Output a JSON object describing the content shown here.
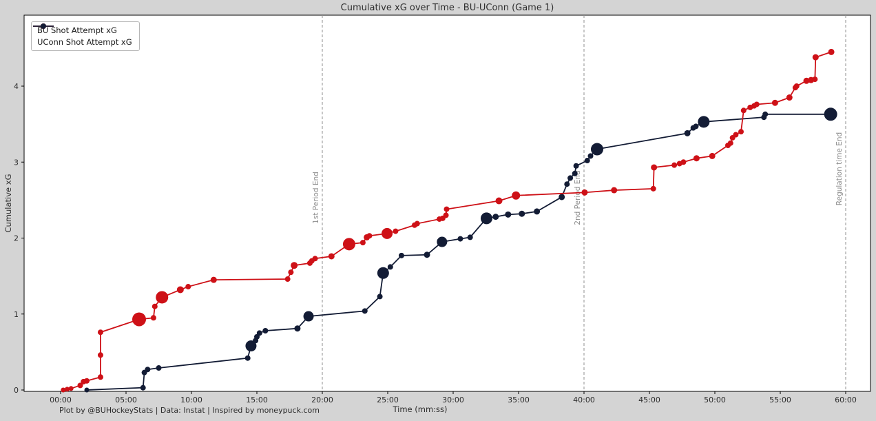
{
  "title": "Cumulative xG over Time - BU-UConn (Game 1)",
  "footer": "Plot by @BUHockeyStats | Data: Instat | Inspired by moneypuck.com",
  "axes": {
    "x_label": "Time (mm:ss)",
    "y_label": "Cumulative xG",
    "x_ticks": [
      "00:00",
      "05:00",
      "10:00",
      "15:00",
      "20:00",
      "25:00",
      "30:00",
      "35:00",
      "40:00",
      "45:00",
      "50:00",
      "55:00",
      "60:00"
    ],
    "y_ticks": [
      0,
      1,
      2,
      3,
      4
    ]
  },
  "legend": [
    {
      "label": "BU Shot Attempt xG",
      "color": "#ce1117"
    },
    {
      "label": "UConn Shot Attempt xG",
      "color": "#131c35"
    }
  ],
  "colors": {
    "background": "#d4d4d4",
    "plot_background": "#ffffff",
    "bu_red": "#ce1117",
    "uconn_navy": "#131c35",
    "period_line": "#8f8f8f",
    "annotation_text": "#8c8c8c"
  },
  "annotations": [
    {
      "time": "20:00",
      "label": "1st Period End"
    },
    {
      "time": "40:00",
      "label": "2nd Period End"
    },
    {
      "time": "60:00",
      "label": "Regulation time End"
    }
  ],
  "chart_data": {
    "type": "line",
    "title": "Cumulative xG over Time - BU-UConn (Game 1)",
    "xlabel": "Time (mm:ss)",
    "ylabel": "Cumulative xG",
    "x_range": [
      "00:00",
      "60:00"
    ],
    "ylim": [
      0,
      4.93
    ],
    "grid": false,
    "legend_position": "upper-left",
    "point_format": [
      "time_mm:ss",
      "cumulative_xg",
      "marker_radius_px"
    ],
    "series": [
      {
        "name": "UConn Shot Attempt xG",
        "color": "#131c35",
        "points": [
          [
            "02:00",
            0.0,
            3.5
          ],
          [
            "06:18",
            0.03,
            4
          ],
          [
            "06:24",
            0.23,
            4
          ],
          [
            "06:39",
            0.27,
            4
          ],
          [
            "07:30",
            0.29,
            4
          ],
          [
            "14:18",
            0.42,
            4
          ],
          [
            "14:33",
            0.58,
            8
          ],
          [
            "14:54",
            0.65,
            4
          ],
          [
            "15:00",
            0.7,
            4
          ],
          [
            "15:12",
            0.75,
            4
          ],
          [
            "15:39",
            0.78,
            4
          ],
          [
            "18:06",
            0.81,
            4.5
          ],
          [
            "18:57",
            0.97,
            7.5
          ],
          [
            "23:15",
            1.04,
            4
          ],
          [
            "24:24",
            1.23,
            4
          ],
          [
            "24:39",
            1.54,
            8.5
          ],
          [
            "25:12",
            1.62,
            4
          ],
          [
            "26:03",
            1.77,
            4
          ],
          [
            "28:00",
            1.78,
            4.5
          ],
          [
            "29:09",
            1.95,
            7.5
          ],
          [
            "30:33",
            1.99,
            4
          ],
          [
            "31:18",
            2.01,
            4
          ],
          [
            "32:33",
            2.26,
            8.5
          ],
          [
            "33:15",
            2.28,
            4.5
          ],
          [
            "34:12",
            2.31,
            4.5
          ],
          [
            "35:15",
            2.32,
            4.5
          ],
          [
            "36:24",
            2.35,
            4.5
          ],
          [
            "38:18",
            2.54,
            4.5
          ],
          [
            "38:42",
            2.71,
            4
          ],
          [
            "38:57",
            2.79,
            4
          ],
          [
            "39:18",
            2.85,
            4
          ],
          [
            "39:24",
            2.95,
            4
          ],
          [
            "40:15",
            3.02,
            4
          ],
          [
            "40:30",
            3.08,
            4
          ],
          [
            "41:00",
            3.17,
            9
          ],
          [
            "47:54",
            3.38,
            4.5
          ],
          [
            "48:21",
            3.45,
            4
          ],
          [
            "48:33",
            3.47,
            4
          ],
          [
            "49:09",
            3.53,
            8.5
          ],
          [
            "53:45",
            3.59,
            4
          ],
          [
            "53:51",
            3.63,
            4
          ],
          [
            "58:51",
            3.63,
            9.5
          ]
        ]
      },
      {
        "name": "BU Shot Attempt xG",
        "color": "#ce1117",
        "points": [
          [
            "00:12",
            0.0,
            3.5
          ],
          [
            "00:30",
            0.01,
            3.5
          ],
          [
            "00:48",
            0.02,
            3.5
          ],
          [
            "01:30",
            0.06,
            4
          ],
          [
            "01:45",
            0.11,
            4
          ],
          [
            "02:00",
            0.12,
            4
          ],
          [
            "03:03",
            0.17,
            4
          ],
          [
            "03:03",
            0.46,
            4
          ],
          [
            "03:03",
            0.76,
            4
          ],
          [
            "06:00",
            0.93,
            10
          ],
          [
            "07:06",
            0.95,
            4
          ],
          [
            "07:12",
            1.1,
            4
          ],
          [
            "07:45",
            1.22,
            9
          ],
          [
            "09:09",
            1.32,
            5
          ],
          [
            "09:45",
            1.36,
            4
          ],
          [
            "11:42",
            1.45,
            4.5
          ],
          [
            "17:21",
            1.46,
            4
          ],
          [
            "17:36",
            1.55,
            4
          ],
          [
            "17:51",
            1.64,
            5
          ],
          [
            "19:03",
            1.67,
            4
          ],
          [
            "19:12",
            1.7,
            4
          ],
          [
            "19:27",
            1.73,
            4
          ],
          [
            "20:42",
            1.76,
            4.5
          ],
          [
            "22:03",
            1.92,
            9
          ],
          [
            "23:06",
            1.94,
            4
          ],
          [
            "23:24",
            2.01,
            4.5
          ],
          [
            "23:36",
            2.03,
            4
          ],
          [
            "24:57",
            2.06,
            8
          ],
          [
            "25:36",
            2.09,
            4
          ],
          [
            "27:03",
            2.17,
            4
          ],
          [
            "27:15",
            2.19,
            4
          ],
          [
            "28:57",
            2.25,
            4
          ],
          [
            "29:12",
            2.26,
            4
          ],
          [
            "29:27",
            2.3,
            4
          ],
          [
            "29:30",
            2.38,
            4
          ],
          [
            "33:30",
            2.49,
            5
          ],
          [
            "34:48",
            2.56,
            6
          ],
          [
            "40:03",
            2.6,
            4.5
          ],
          [
            "42:18",
            2.63,
            4.5
          ],
          [
            "45:18",
            2.65,
            4
          ],
          [
            "45:21",
            2.93,
            4.5
          ],
          [
            "46:54",
            2.96,
            4
          ],
          [
            "47:18",
            2.98,
            4
          ],
          [
            "47:36",
            3.0,
            4
          ],
          [
            "48:36",
            3.05,
            4.5
          ],
          [
            "49:48",
            3.08,
            4.5
          ],
          [
            "51:00",
            3.22,
            4
          ],
          [
            "51:12",
            3.25,
            4
          ],
          [
            "51:21",
            3.32,
            4
          ],
          [
            "51:36",
            3.36,
            4
          ],
          [
            "52:00",
            3.4,
            4
          ],
          [
            "52:12",
            3.68,
            4
          ],
          [
            "52:42",
            3.72,
            4
          ],
          [
            "53:00",
            3.74,
            4
          ],
          [
            "53:12",
            3.76,
            4
          ],
          [
            "54:36",
            3.78,
            4.5
          ],
          [
            "55:42",
            3.85,
            4.5
          ],
          [
            "56:09",
            3.98,
            4
          ],
          [
            "56:15",
            4.0,
            4
          ],
          [
            "57:00",
            4.07,
            4.5
          ],
          [
            "57:21",
            4.08,
            4.5
          ],
          [
            "57:39",
            4.09,
            4
          ],
          [
            "57:42",
            4.38,
            4.5
          ],
          [
            "58:54",
            4.45,
            4.5
          ]
        ]
      }
    ]
  }
}
